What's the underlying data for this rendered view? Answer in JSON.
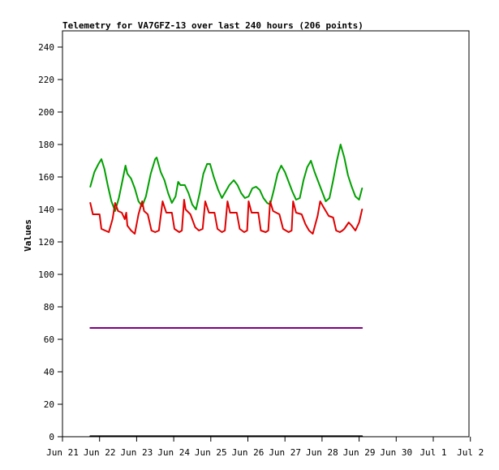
{
  "chart_data": {
    "type": "line",
    "title": "Telemetry for VA7GFZ-13 over last 240 hours (206 points)",
    "xlabel": "",
    "ylabel": "Values",
    "ylim": [
      0,
      250
    ],
    "yticks": [
      0,
      20,
      40,
      60,
      80,
      100,
      120,
      140,
      160,
      180,
      200,
      220,
      240
    ],
    "xlim": [
      0,
      11
    ],
    "xticks": [
      {
        "x": 0,
        "label": "Jun 21"
      },
      {
        "x": 1,
        "label": "Jun 22"
      },
      {
        "x": 2,
        "label": "Jun 23"
      },
      {
        "x": 3,
        "label": "Jun 24"
      },
      {
        "x": 4,
        "label": "Jun 25"
      },
      {
        "x": 5,
        "label": "Jun 26"
      },
      {
        "x": 6,
        "label": "Jun 27"
      },
      {
        "x": 7,
        "label": "Jun 28"
      },
      {
        "x": 8,
        "label": "Jun 29"
      },
      {
        "x": 9,
        "label": "Jun 30"
      },
      {
        "x": 10,
        "label": "Jul 1"
      },
      {
        "x": 11,
        "label": "Jul 2"
      }
    ],
    "grid": false,
    "legend": "none",
    "series": [
      {
        "color": "#00a000",
        "points": [
          [
            0.75,
            154
          ],
          [
            0.86,
            163
          ],
          [
            0.97,
            168
          ],
          [
            1.05,
            171
          ],
          [
            1.13,
            165
          ],
          [
            1.22,
            155
          ],
          [
            1.32,
            145
          ],
          [
            1.42,
            139
          ],
          [
            1.52,
            147
          ],
          [
            1.62,
            158
          ],
          [
            1.7,
            167
          ],
          [
            1.75,
            162
          ],
          [
            1.85,
            159
          ],
          [
            1.95,
            153
          ],
          [
            2.05,
            145
          ],
          [
            2.15,
            142
          ],
          [
            2.25,
            148
          ],
          [
            2.38,
            162
          ],
          [
            2.5,
            171
          ],
          [
            2.54,
            172
          ],
          [
            2.65,
            163
          ],
          [
            2.75,
            158
          ],
          [
            2.85,
            150
          ],
          [
            2.95,
            144
          ],
          [
            3.05,
            148
          ],
          [
            3.12,
            157
          ],
          [
            3.18,
            155
          ],
          [
            3.3,
            155
          ],
          [
            3.4,
            150
          ],
          [
            3.5,
            143
          ],
          [
            3.6,
            140
          ],
          [
            3.7,
            150
          ],
          [
            3.8,
            162
          ],
          [
            3.9,
            168
          ],
          [
            3.98,
            168
          ],
          [
            4.08,
            160
          ],
          [
            4.2,
            152
          ],
          [
            4.3,
            147
          ],
          [
            4.4,
            151
          ],
          [
            4.5,
            155
          ],
          [
            4.62,
            158
          ],
          [
            4.72,
            155
          ],
          [
            4.82,
            150
          ],
          [
            4.92,
            147
          ],
          [
            5.02,
            148
          ],
          [
            5.12,
            153
          ],
          [
            5.22,
            154
          ],
          [
            5.32,
            152
          ],
          [
            5.42,
            147
          ],
          [
            5.52,
            144
          ],
          [
            5.6,
            143
          ],
          [
            5.7,
            152
          ],
          [
            5.8,
            162
          ],
          [
            5.9,
            167
          ],
          [
            6.0,
            163
          ],
          [
            6.1,
            157
          ],
          [
            6.2,
            151
          ],
          [
            6.3,
            146
          ],
          [
            6.4,
            147
          ],
          [
            6.5,
            158
          ],
          [
            6.6,
            166
          ],
          [
            6.7,
            170
          ],
          [
            6.8,
            163
          ],
          [
            6.9,
            157
          ],
          [
            7.0,
            151
          ],
          [
            7.1,
            145
          ],
          [
            7.2,
            147
          ],
          [
            7.3,
            158
          ],
          [
            7.4,
            170
          ],
          [
            7.5,
            180
          ],
          [
            7.6,
            172
          ],
          [
            7.7,
            161
          ],
          [
            7.8,
            154
          ],
          [
            7.9,
            148
          ],
          [
            8.0,
            146
          ],
          [
            8.08,
            153
          ]
        ]
      },
      {
        "color": "#e00000",
        "points": [
          [
            0.75,
            144
          ],
          [
            0.82,
            137
          ],
          [
            1.0,
            137
          ],
          [
            1.05,
            128
          ],
          [
            1.15,
            127
          ],
          [
            1.25,
            126
          ],
          [
            1.35,
            134
          ],
          [
            1.42,
            144
          ],
          [
            1.5,
            139
          ],
          [
            1.6,
            138
          ],
          [
            1.68,
            134
          ],
          [
            1.72,
            138
          ],
          [
            1.75,
            130
          ],
          [
            1.85,
            127
          ],
          [
            1.95,
            125
          ],
          [
            2.05,
            137
          ],
          [
            2.15,
            145
          ],
          [
            2.2,
            139
          ],
          [
            2.3,
            137
          ],
          [
            2.4,
            127
          ],
          [
            2.5,
            126
          ],
          [
            2.6,
            127
          ],
          [
            2.7,
            145
          ],
          [
            2.8,
            138
          ],
          [
            2.95,
            138
          ],
          [
            3.02,
            128
          ],
          [
            3.15,
            126
          ],
          [
            3.22,
            127
          ],
          [
            3.28,
            146
          ],
          [
            3.32,
            140
          ],
          [
            3.45,
            137
          ],
          [
            3.58,
            129
          ],
          [
            3.68,
            127
          ],
          [
            3.78,
            128
          ],
          [
            3.85,
            145
          ],
          [
            3.95,
            138
          ],
          [
            4.1,
            138
          ],
          [
            4.18,
            128
          ],
          [
            4.3,
            126
          ],
          [
            4.38,
            127
          ],
          [
            4.45,
            145
          ],
          [
            4.52,
            138
          ],
          [
            4.7,
            138
          ],
          [
            4.78,
            128
          ],
          [
            4.9,
            126
          ],
          [
            4.98,
            127
          ],
          [
            5.02,
            145
          ],
          [
            5.1,
            138
          ],
          [
            5.28,
            138
          ],
          [
            5.35,
            127
          ],
          [
            5.48,
            126
          ],
          [
            5.55,
            127
          ],
          [
            5.6,
            145
          ],
          [
            5.68,
            139
          ],
          [
            5.85,
            137
          ],
          [
            5.95,
            128
          ],
          [
            6.1,
            126
          ],
          [
            6.18,
            127
          ],
          [
            6.22,
            145
          ],
          [
            6.3,
            138
          ],
          [
            6.45,
            137
          ],
          [
            6.55,
            131
          ],
          [
            6.65,
            127
          ],
          [
            6.75,
            125
          ],
          [
            6.88,
            136
          ],
          [
            6.95,
            145
          ],
          [
            7.05,
            141
          ],
          [
            7.18,
            136
          ],
          [
            7.3,
            135
          ],
          [
            7.38,
            127
          ],
          [
            7.48,
            126
          ],
          [
            7.55,
            127
          ],
          [
            7.6,
            128
          ],
          [
            7.72,
            132
          ],
          [
            7.8,
            130
          ],
          [
            7.9,
            127
          ],
          [
            8.0,
            132
          ],
          [
            8.08,
            140
          ]
        ]
      },
      {
        "color": "#800080",
        "points": [
          [
            0.75,
            67
          ],
          [
            8.08,
            67
          ]
        ]
      },
      {
        "color": "#000000",
        "points": [
          [
            0.75,
            0.3
          ],
          [
            8.08,
            0.3
          ]
        ]
      }
    ]
  }
}
